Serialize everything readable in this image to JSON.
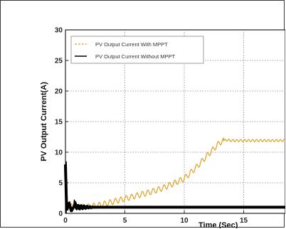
{
  "chart_data": {
    "type": "line",
    "title": "",
    "xlabel": "Time (Sec)",
    "ylabel": "PV Output Current(A)",
    "xlim": [
      0,
      18.5
    ],
    "ylim": [
      0,
      30
    ],
    "xticks": [
      0,
      5,
      10,
      15
    ],
    "xtick_labels": [
      "0",
      "5",
      "10",
      "15"
    ],
    "yticks": [
      0,
      5,
      10,
      15,
      20,
      25,
      30
    ],
    "ytick_labels": [
      "0",
      "5",
      "10",
      "15",
      "20",
      "25",
      "30"
    ],
    "grid": true,
    "legend_position": "top-left",
    "series": [
      {
        "name": "PV Output Current With MPPT",
        "color": "#e0a020",
        "style": "dashed",
        "x": [
          0,
          0.1,
          0.3,
          0.5,
          0.8,
          1,
          2,
          3,
          4,
          5,
          6,
          7,
          8,
          9,
          10,
          11,
          12,
          13,
          13.5,
          14,
          15,
          16,
          17,
          18,
          18.5
        ],
        "y": [
          8.5,
          2.5,
          0.6,
          1.6,
          0.9,
          1.0,
          1.1,
          1.4,
          1.9,
          2.4,
          2.9,
          3.4,
          4.0,
          4.8,
          5.7,
          7.5,
          9.6,
          11.6,
          12.0,
          11.9,
          11.9,
          11.9,
          11.9,
          11.9,
          11.9
        ]
      },
      {
        "name": "PV Output Current Without MPPT",
        "color": "#000000",
        "style": "solid",
        "x": [
          0,
          0.1,
          0.3,
          0.5,
          0.8,
          1,
          2,
          3,
          4,
          5,
          6,
          7,
          8,
          9,
          10,
          11,
          12,
          13,
          14,
          15,
          16,
          17,
          18,
          18.5
        ],
        "y": [
          8,
          0.5,
          1.7,
          0.4,
          1.4,
          1.0,
          1.0,
          1.0,
          1.0,
          1.0,
          1.0,
          1.0,
          1.0,
          1.0,
          1.0,
          1.0,
          1.0,
          1.0,
          1.0,
          1.0,
          1.0,
          1.0,
          1.0,
          1.0
        ]
      }
    ]
  }
}
